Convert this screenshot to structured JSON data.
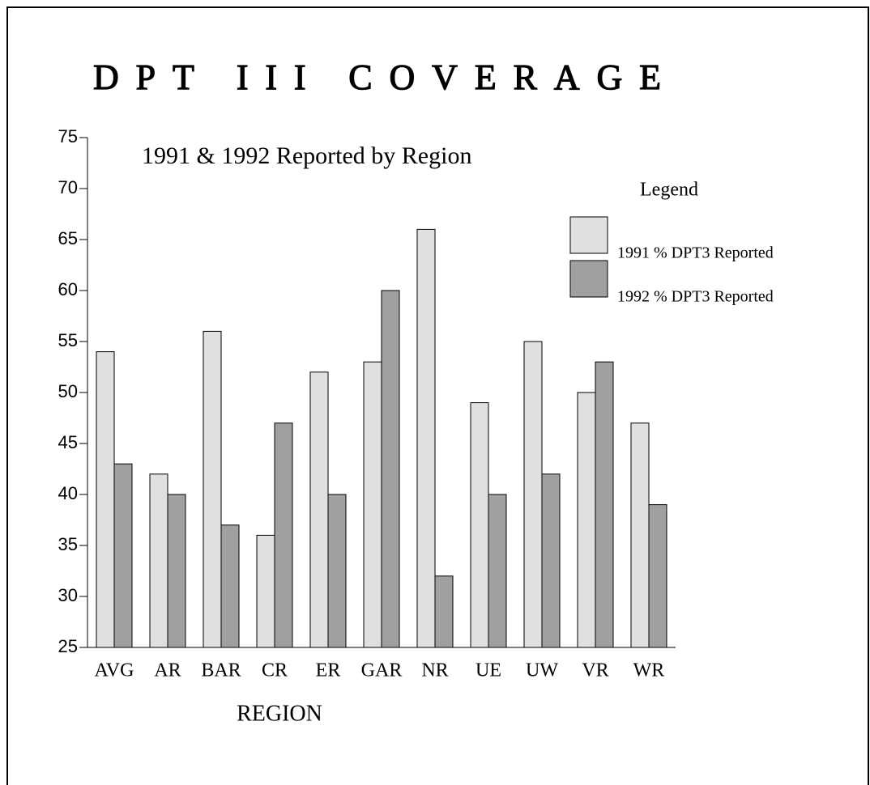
{
  "chart_data": {
    "type": "bar",
    "title": "DPT III COVERAGE",
    "subtitle": "1991 & 1992 Reported by Region",
    "x_label": "REGION",
    "legend_title": "Legend",
    "categories": [
      "AVG",
      "AR",
      "BAR",
      "CR",
      "ER",
      "GAR",
      "NR",
      "UE",
      "UW",
      "VR",
      "WR"
    ],
    "series": [
      {
        "name": "1991 % DPT3 Reported",
        "color": "#e0e0e0",
        "values": [
          54,
          42,
          56,
          36,
          52,
          53,
          66,
          49,
          55,
          50,
          47
        ]
      },
      {
        "name": "1992 % DPT3 Reported",
        "color": "#a0a0a0",
        "values": [
          43,
          40,
          37,
          47,
          40,
          60,
          32,
          40,
          42,
          53,
          39
        ]
      }
    ],
    "ylim": [
      25,
      75
    ],
    "yticks": [
      25,
      30,
      35,
      40,
      45,
      50,
      55,
      60,
      65,
      70,
      75
    ]
  }
}
